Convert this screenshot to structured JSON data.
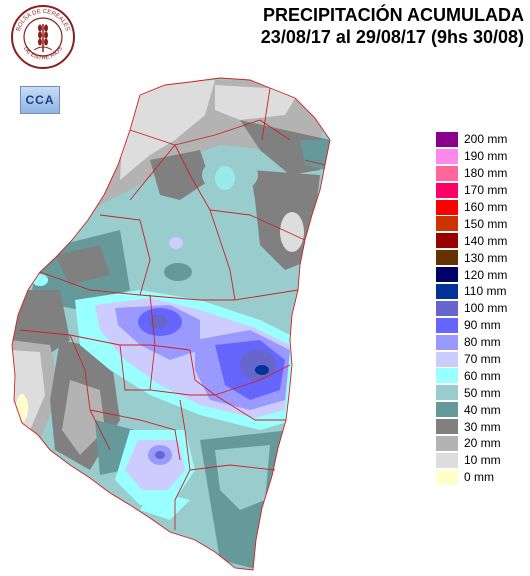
{
  "header": {
    "title_line1": "PRECIPITACIÓN ACUMULADA",
    "title_line2": "23/08/17 al 29/08/17 (9hs 30/08)"
  },
  "logo": {
    "text_top": "BOLSA DE CEREALES",
    "text_bottom": "DE ENTRE RÍOS",
    "primary_color": "#8a1f1f"
  },
  "badge": {
    "label": "CCA"
  },
  "legend": {
    "items": [
      {
        "label": "200 mm",
        "color": "#8b008b"
      },
      {
        "label": "190 mm",
        "color": "#ff88ee"
      },
      {
        "label": "180 mm",
        "color": "#ff6699"
      },
      {
        "label": "170 mm",
        "color": "#ff0066"
      },
      {
        "label": "160 mm",
        "color": "#ff0000"
      },
      {
        "label": "150 mm",
        "color": "#cc3300"
      },
      {
        "label": "140 mm",
        "color": "#990000"
      },
      {
        "label": "130 mm",
        "color": "#663300"
      },
      {
        "label": "120 mm",
        "color": "#000066"
      },
      {
        "label": "110 mm",
        "color": "#003399"
      },
      {
        "label": "100 mm",
        "color": "#6666cc"
      },
      {
        "label": "90 mm",
        "color": "#6666ff"
      },
      {
        "label": "80 mm",
        "color": "#9999ff"
      },
      {
        "label": "70 mm",
        "color": "#ccccff"
      },
      {
        "label": "60 mm",
        "color": "#99ffff"
      },
      {
        "label": "50 mm",
        "color": "#99cccc"
      },
      {
        "label": "40 mm",
        "color": "#669999"
      },
      {
        "label": "30 mm",
        "color": "#808080"
      },
      {
        "label": "20 mm",
        "color": "#b3b3b3"
      },
      {
        "label": "10 mm",
        "color": "#dddddd"
      },
      {
        "label": "0 mm",
        "color": "#ffffcc"
      }
    ]
  }
}
